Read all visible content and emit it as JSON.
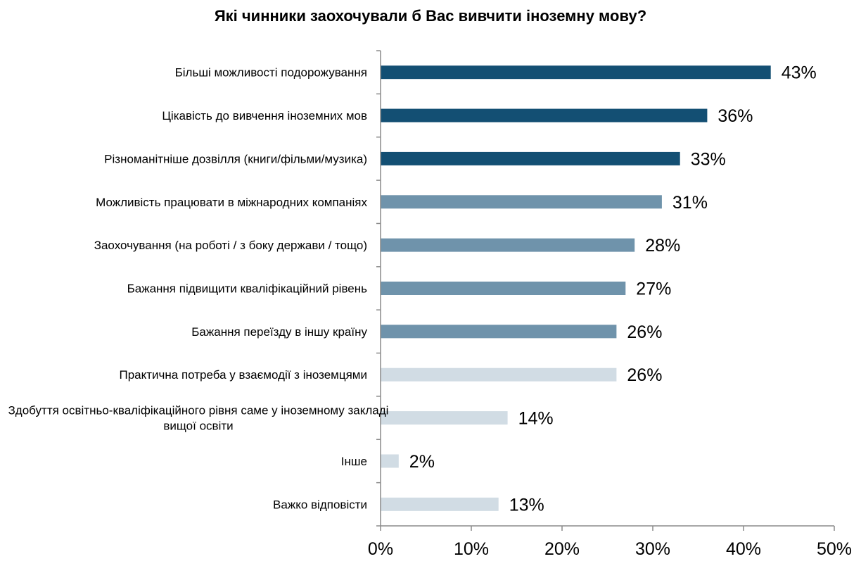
{
  "chart_data": {
    "type": "bar",
    "orientation": "horizontal",
    "title": "Які чинники заохочували б Вас вивчити іноземну мову?",
    "categories": [
      "Більші можливості подорожування",
      "Цікавість до вивчення іноземних мов",
      "Різноманітніше дозвілля (книги/фільми/музика)",
      "Можливість працювати в міжнародних компаніях",
      "Заохочування (на роботі / з боку держави / тощо)",
      "Бажання підвищити кваліфікаційний рівень",
      "Бажання переїзду в іншу країну",
      "Практична потреба у взаємодії з іноземцями",
      "Здобуття освітньо-кваліфікаційного рівня саме у іноземному закладі вищої освіти",
      "Інше",
      "Важко відповісти"
    ],
    "values": [
      43,
      36,
      33,
      31,
      28,
      27,
      26,
      26,
      14,
      2,
      13
    ],
    "data_labels": [
      "43%",
      "36%",
      "33%",
      "31%",
      "28%",
      "27%",
      "26%",
      "26%",
      "14%",
      "2%",
      "13%"
    ],
    "bar_colors": [
      "#134f73",
      "#134f73",
      "#134f73",
      "#6f93ab",
      "#6f93ab",
      "#6f93ab",
      "#6f93ab",
      "#d1dce4",
      "#d1dce4",
      "#d1dce4",
      "#d1dce4"
    ],
    "xlim": [
      0,
      50
    ],
    "xticks": [
      0,
      10,
      20,
      30,
      40,
      50
    ],
    "xtick_labels": [
      "0%",
      "10%",
      "20%",
      "30%",
      "40%",
      "50%"
    ],
    "xlabel": "",
    "ylabel": "",
    "grid": false,
    "legend": "none"
  }
}
